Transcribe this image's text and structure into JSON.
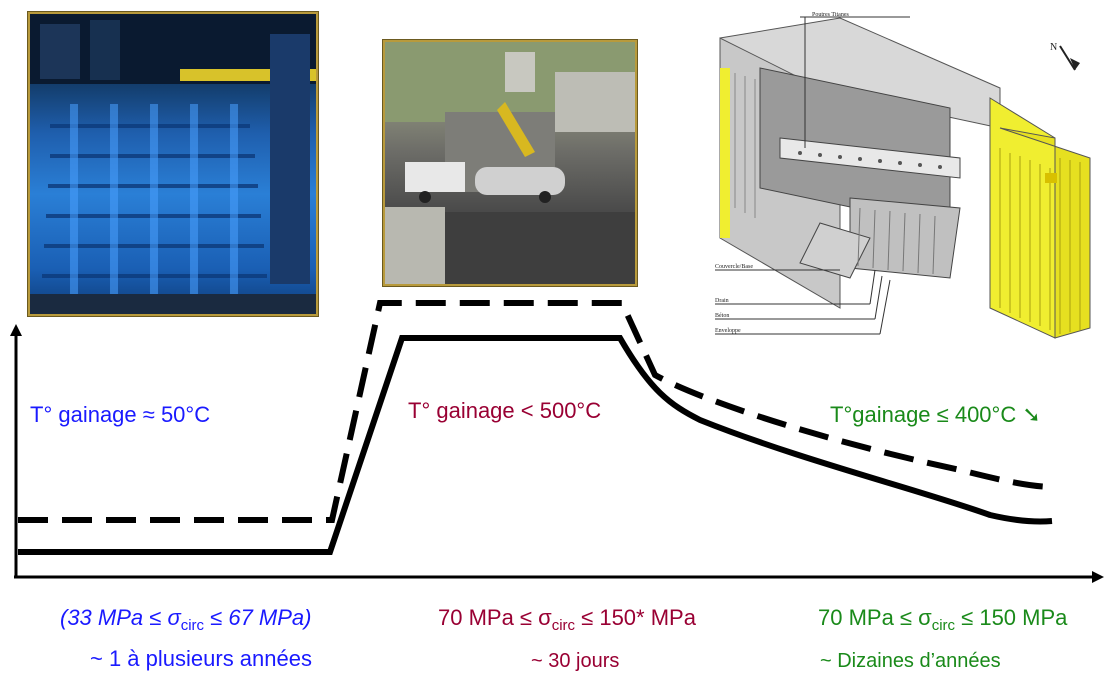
{
  "photos": [
    {
      "name": "storage-pool-photo",
      "icon": "storage-pool-image"
    },
    {
      "name": "transport-photo",
      "icon": "truck-cask-transport-image"
    },
    {
      "name": "dry-storage-cutaway",
      "icon": "dry-storage-facility-cutaway-diagram"
    }
  ],
  "diagram_legend": {
    "top": "Poutres Titanes",
    "mid": "Couvercle/Base",
    "drain": "Drain",
    "beton": "Béton",
    "enveloppe": "Enveloppe",
    "north": "N"
  },
  "phases": [
    {
      "temperature": "T° gainage ≈ 50°C",
      "stress_prefix": "(33 MPa ≤ σ",
      "stress_sub": "circ",
      "stress_suffix": " ≤ 67 MPa)",
      "duration": "~ 1 à plusieurs années",
      "color": "#1a1aff"
    },
    {
      "temperature": "T° gainage < 500°C",
      "stress_prefix": "70 MPa ≤ σ",
      "stress_sub": "circ",
      "stress_suffix": " ≤ 150* MPa",
      "duration": "~ 30 jours",
      "color": "#990033"
    },
    {
      "temperature": "T°gainage ≤ 400°C",
      "stress_prefix": "70 MPa ≤ σ",
      "stress_sub": "circ",
      "stress_suffix": " ≤ 150 MPa",
      "duration": "~ Dizaines d’années",
      "color": "#1a8a1a",
      "trend_icon": "arrow-down-right-icon",
      "trend_glyph": "➘"
    }
  ]
}
